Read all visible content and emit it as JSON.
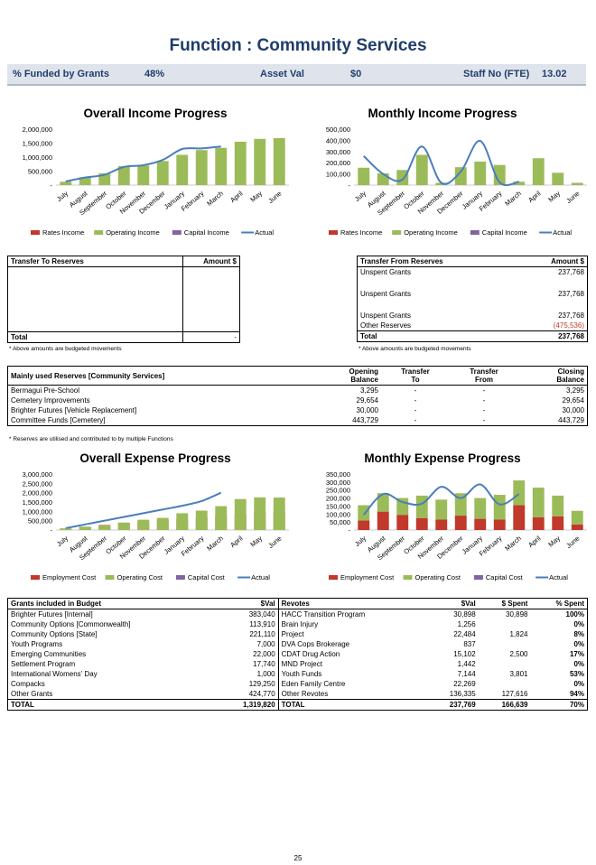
{
  "header": {
    "title": "Function : Community Services",
    "funded_label": "% Funded by Grants",
    "funded_value": "48%",
    "asset_label": "Asset Val",
    "asset_value": "$0",
    "staff_label": "Staff No (FTE)",
    "staff_value": "13.02"
  },
  "chart_data": [
    {
      "type": "bar",
      "title": "Overall Income Progress",
      "categories": [
        "July",
        "August",
        "September",
        "October",
        "November",
        "December",
        "January",
        "February",
        "March",
        "April",
        "May",
        "June"
      ],
      "series": [
        {
          "name": "Rates Income",
          "values": [
            0,
            0,
            0,
            0,
            0,
            0,
            0,
            0,
            0,
            0,
            0,
            0
          ]
        },
        {
          "name": "Operating Income",
          "values": [
            120000,
            280000,
            420000,
            680000,
            700000,
            860000,
            1080000,
            1250000,
            1330000,
            1550000,
            1650000,
            1680000
          ]
        },
        {
          "name": "Capital Income",
          "values": [
            0,
            0,
            0,
            0,
            0,
            0,
            0,
            0,
            0,
            0,
            0,
            0
          ]
        },
        {
          "name": "Actual",
          "values": [
            130000,
            270000,
            370000,
            650000,
            710000,
            900000,
            1290000,
            1310000,
            1380000,
            null,
            null,
            null
          ]
        }
      ],
      "yticks": [
        "2,000,000",
        "1,500,000",
        "1,000,000",
        "500,000",
        "-"
      ],
      "ylim": [
        0,
        2000000
      ]
    },
    {
      "type": "bar",
      "title": "Monthly Income Progress",
      "categories": [
        "July",
        "August",
        "September",
        "October",
        "November",
        "December",
        "January",
        "February",
        "March",
        "April",
        "May",
        "June"
      ],
      "series": [
        {
          "name": "Rates Income",
          "values": [
            0,
            0,
            0,
            0,
            0,
            0,
            0,
            0,
            0,
            0,
            0,
            0
          ]
        },
        {
          "name": "Operating Income",
          "values": [
            155000,
            105000,
            135000,
            270000,
            20000,
            160000,
            210000,
            180000,
            30000,
            240000,
            110000,
            20000
          ]
        },
        {
          "name": "Capital Income",
          "values": [
            0,
            0,
            0,
            0,
            0,
            0,
            0,
            0,
            0,
            0,
            0,
            0
          ]
        },
        {
          "name": "Actual",
          "values": [
            260000,
            100000,
            50000,
            345000,
            20000,
            120000,
            395000,
            25000,
            30000,
            null,
            null,
            null
          ]
        }
      ],
      "yticks": [
        "500,000",
        "400,000",
        "300,000",
        "200,000",
        "100,000",
        "-"
      ],
      "ylim": [
        0,
        500000
      ]
    },
    {
      "type": "bar",
      "title": "Overall Expense Progress",
      "categories": [
        "July",
        "August",
        "September",
        "October",
        "November",
        "December",
        "January",
        "February",
        "March",
        "April",
        "May",
        "June"
      ],
      "series": [
        {
          "name": "Employment Cost",
          "values": [
            60000,
            170000,
            270000,
            350000,
            420000,
            500000,
            580000,
            660000,
            750000,
            840000,
            920000,
            1000000
          ]
        },
        {
          "name": "Operating Cost",
          "values": [
            90000,
            180000,
            250000,
            400000,
            550000,
            650000,
            900000,
            1040000,
            1280000,
            1660000,
            1750000,
            1740000
          ]
        },
        {
          "name": "Capital Cost",
          "values": [
            0,
            0,
            0,
            0,
            0,
            0,
            0,
            0,
            0,
            0,
            0,
            0
          ]
        },
        {
          "name": "Actual",
          "values": [
            100000,
            300000,
            500000,
            700000,
            900000,
            1100000,
            1300000,
            1550000,
            2000000,
            null,
            null,
            null
          ]
        }
      ],
      "yticks": [
        "3,000,000",
        "2,500,000",
        "2,000,000",
        "1,500,000",
        "1,000,000",
        "500,000",
        "-"
      ],
      "ylim": [
        0,
        3000000
      ]
    },
    {
      "type": "bar",
      "title": "Monthly Expense Progress",
      "categories": [
        "July",
        "August",
        "September",
        "October",
        "November",
        "December",
        "January",
        "February",
        "March",
        "April",
        "May",
        "June"
      ],
      "series": [
        {
          "name": "Employment Cost",
          "values": [
            60000,
            115000,
            95000,
            75000,
            65000,
            90000,
            70000,
            65000,
            155000,
            80000,
            85000,
            35000
          ]
        },
        {
          "name": "Operating Cost",
          "values": [
            95000,
            115000,
            105000,
            140000,
            125000,
            140000,
            130000,
            155000,
            155000,
            185000,
            130000,
            85000
          ]
        },
        {
          "name": "Capital Cost",
          "values": [
            0,
            0,
            0,
            0,
            0,
            0,
            0,
            0,
            0,
            0,
            0,
            0
          ]
        },
        {
          "name": "Actual",
          "values": [
            95000,
            225000,
            175000,
            165000,
            270000,
            200000,
            285000,
            160000,
            225000,
            null,
            null,
            null
          ]
        }
      ],
      "yticks": [
        "350,000",
        "300,000",
        "250,000",
        "200,000",
        "150,000",
        "100,000",
        "50,000",
        "-"
      ],
      "ylim": [
        0,
        350000
      ]
    }
  ],
  "colors": {
    "rates": "#c0392b",
    "operating": "#9bbb59",
    "capital": "#8064a2",
    "actual": "#4a7ebb"
  },
  "transfer_to": {
    "header": "Transfer To Reserves",
    "amount_header": "Amount $",
    "total_label": "Total",
    "total_value": "-",
    "note": "* Above amounts are budgeted movements"
  },
  "transfer_from": {
    "header": "Transfer From Reserves",
    "amount_header": "Amount $",
    "rows": [
      {
        "label": "Unspent Grants",
        "value": "237,768"
      },
      {
        "label": "Unspent Grants",
        "value": "237,768"
      },
      {
        "label": "Unspent Grants",
        "value": "237,768"
      },
      {
        "label": "Other Reserves",
        "value": "(475,536)"
      }
    ],
    "total_label": "Total",
    "total_value": "237,768",
    "note": "* Above amounts are budgeted movements"
  },
  "reserves": {
    "header": "Mainly used Reserves [Community Services]",
    "cols": [
      "Opening Balance",
      "Transfer To",
      "Transfer From",
      "Closing Balance"
    ],
    "col_a": [
      "Opening",
      "Balance"
    ],
    "col_b": [
      "Transfer",
      "To"
    ],
    "col_c": [
      "Transfer",
      "From"
    ],
    "col_d": [
      "Closing",
      "Balance"
    ],
    "rows": [
      {
        "name": "Bermagui Pre-School",
        "open": "3,295",
        "to": "-",
        "from": "-",
        "close": "3,295"
      },
      {
        "name": "Cemetery Improvements",
        "open": "29,654",
        "to": "-",
        "from": "-",
        "close": "29,654"
      },
      {
        "name": "Brighter Futures [Vehicle Replacement]",
        "open": "30,000",
        "to": "-",
        "from": "-",
        "close": "30,000"
      },
      {
        "name": "Committee Funds [Cemetery]",
        "open": "443,729",
        "to": "-",
        "from": "-",
        "close": "443,729"
      }
    ],
    "note": "* Reserves are utilised and contributed to by multiple Functions"
  },
  "grants": {
    "h_grants": "Grants included in Budget",
    "h_val": "$Val",
    "h_revotes": "Revotes",
    "h_val2": "$Val",
    "h_spent": "$ Spent",
    "h_pct": "% Spent",
    "rows": [
      {
        "g": "Brighter Futures [Internal]",
        "gv": "383,040",
        "r": "HACC Transition Program",
        "rv": "30,898",
        "s": "30,898",
        "p": "100%"
      },
      {
        "g": "Community Options [Commonwealth]",
        "gv": "113,910",
        "r": "Brain Injury",
        "rv": "1,256",
        "s": "",
        "p": "0%"
      },
      {
        "g": "Community Options [State]",
        "gv": "221,110",
        "r": "Project",
        "rv": "22,484",
        "s": "1,824",
        "p": "8%"
      },
      {
        "g": "Youth Programs",
        "gv": "7,000",
        "r": "DVA Cops Brokerage",
        "rv": "837",
        "s": "",
        "p": "0%"
      },
      {
        "g": "Emerging Communities",
        "gv": "22,000",
        "r": "CDAT Drug Action",
        "rv": "15,102",
        "s": "2,500",
        "p": "17%"
      },
      {
        "g": "Settlement Program",
        "gv": "17,740",
        "r": "MND Project",
        "rv": "1,442",
        "s": "",
        "p": "0%"
      },
      {
        "g": "International Womens' Day",
        "gv": "1,000",
        "r": "Youth Funds",
        "rv": "7,144",
        "s": "3,801",
        "p": "53%"
      },
      {
        "g": "Compacks",
        "gv": "129,250",
        "r": "Eden Family Centre",
        "rv": "22,269",
        "s": "",
        "p": "0%"
      },
      {
        "g": "Other Grants",
        "gv": "424,770",
        "r": "Other Revotes",
        "rv": "136,335",
        "s": "127,616",
        "p": "94%"
      }
    ],
    "total_label": "TOTAL",
    "total_gv": "1,319,820",
    "total_label2": "TOTAL",
    "total_rv": "237,769",
    "total_s": "166,639",
    "total_p": "70%"
  },
  "page_number": "25"
}
